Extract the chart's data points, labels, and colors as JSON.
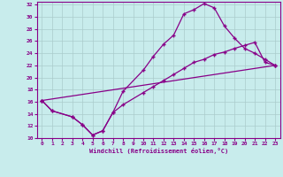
{
  "xlabel": "Windchill (Refroidissement éolien,°C)",
  "bg_color": "#c8ecec",
  "line_color": "#880088",
  "grid_color": "#aacccc",
  "xlim": [
    -0.5,
    23.5
  ],
  "ylim": [
    10,
    32.5
  ],
  "yticks": [
    10,
    12,
    14,
    16,
    18,
    20,
    22,
    24,
    26,
    28,
    30,
    32
  ],
  "xticks": [
    0,
    1,
    2,
    3,
    4,
    5,
    6,
    7,
    8,
    9,
    10,
    11,
    12,
    13,
    14,
    15,
    16,
    17,
    18,
    19,
    20,
    21,
    22,
    23
  ],
  "line1_x": [
    0,
    1,
    3,
    4,
    5,
    6,
    7,
    8,
    10,
    11,
    12,
    13,
    14,
    15,
    16,
    17,
    18,
    19,
    20,
    21,
    22,
    23
  ],
  "line1_y": [
    16.2,
    14.5,
    13.5,
    12.2,
    10.5,
    11.2,
    14.2,
    17.7,
    21.2,
    23.5,
    25.5,
    27.0,
    30.5,
    31.2,
    32.2,
    31.5,
    28.5,
    26.5,
    24.8,
    24.0,
    23.0,
    22.0
  ],
  "line2_x": [
    0,
    1,
    3,
    4,
    5,
    6,
    7,
    8,
    10,
    11,
    12,
    13,
    14,
    15,
    16,
    17,
    18,
    19,
    20,
    21,
    22,
    23
  ],
  "line2_y": [
    16.2,
    14.5,
    13.5,
    12.2,
    10.5,
    11.2,
    14.2,
    15.5,
    17.5,
    18.5,
    19.5,
    20.5,
    21.5,
    22.5,
    23.0,
    23.8,
    24.2,
    24.8,
    25.3,
    25.8,
    22.5,
    22.0
  ],
  "line3_x": [
    0,
    23
  ],
  "line3_y": [
    16.2,
    22.0
  ]
}
